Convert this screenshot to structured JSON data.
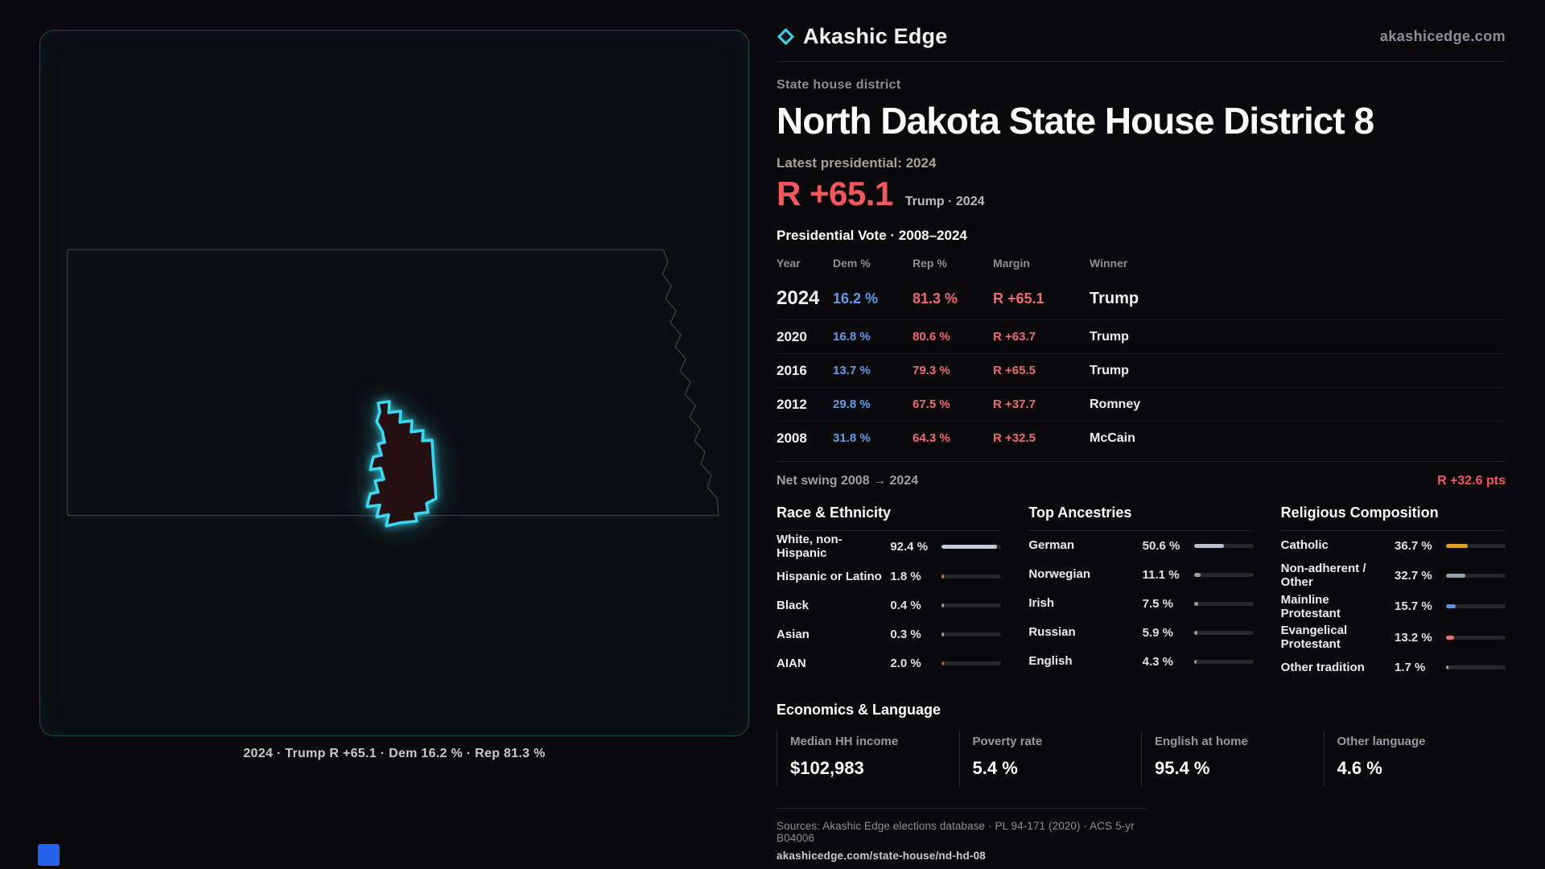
{
  "theme": {
    "accent_cyan": "#3cd9f2",
    "rep_red": "#ee6a6e",
    "dem_blue": "#5f9ee8",
    "headline_red": "#f4575c"
  },
  "brand": {
    "name": "Akashic Edge",
    "site": "akashicedge.com"
  },
  "map": {
    "caption": "2024 · Trump R +65.1 · Dem 16.2 % · Rep 81.3 %"
  },
  "district": {
    "eyebrow": "State house district",
    "title": "North Dakota State House District 8",
    "latest_label": "Latest presidential: 2024",
    "headline_margin": "R +65.1",
    "headline_sub": "Trump · 2024"
  },
  "vote_table": {
    "title": "Presidential Vote · 2008–2024",
    "columns": {
      "year": "Year",
      "dem": "Dem %",
      "rep": "Rep %",
      "margin": "Margin",
      "winner": "Winner"
    },
    "rows": [
      {
        "year": "2024",
        "dem": "16.2 %",
        "rep": "81.3 %",
        "margin": "R +65.1",
        "winner": "Trump"
      },
      {
        "year": "2020",
        "dem": "16.8 %",
        "rep": "80.6 %",
        "margin": "R +63.7",
        "winner": "Trump"
      },
      {
        "year": "2016",
        "dem": "13.7 %",
        "rep": "79.3 %",
        "margin": "R +65.5",
        "winner": "Trump"
      },
      {
        "year": "2012",
        "dem": "29.8 %",
        "rep": "67.5 %",
        "margin": "R +37.7",
        "winner": "Romney"
      },
      {
        "year": "2008",
        "dem": "31.8 %",
        "rep": "64.3 %",
        "margin": "R +32.5",
        "winner": "McCain"
      }
    ],
    "net_swing_label": "Net swing 2008 → 2024",
    "net_swing_value": "R +32.6 pts"
  },
  "demographics": {
    "race": {
      "title": "Race & Ethnicity",
      "items": [
        {
          "label": "White, non-Hispanic",
          "value": "92.4 %",
          "pct": 92.4,
          "color": "#c3cad8"
        },
        {
          "label": "Hispanic or Latino",
          "value": "1.8 %",
          "pct": 1.8,
          "color": "#c9824a"
        },
        {
          "label": "Black",
          "value": "0.4 %",
          "pct": 0.4,
          "color": "#9aa0ab"
        },
        {
          "label": "Asian",
          "value": "0.3 %",
          "pct": 0.3,
          "color": "#9aa0ab"
        },
        {
          "label": "AIAN",
          "value": "2.0 %",
          "pct": 2.0,
          "color": "#c05b33"
        }
      ]
    },
    "ancestries": {
      "title": "Top Ancestries",
      "items": [
        {
          "label": "German",
          "value": "50.6 %",
          "pct": 50.6,
          "color": "#b9c0cc"
        },
        {
          "label": "Norwegian",
          "value": "11.1 %",
          "pct": 11.1,
          "color": "#9aa0ab"
        },
        {
          "label": "Irish",
          "value": "7.5 %",
          "pct": 7.5,
          "color": "#9aa0ab"
        },
        {
          "label": "Russian",
          "value": "5.9 %",
          "pct": 5.9,
          "color": "#9aa0ab"
        },
        {
          "label": "English",
          "value": "4.3 %",
          "pct": 4.3,
          "color": "#9aa0ab"
        }
      ]
    },
    "religion": {
      "title": "Religious Composition",
      "items": [
        {
          "label": "Catholic",
          "value": "36.7 %",
          "pct": 36.7,
          "color": "#d9a427"
        },
        {
          "label": "Non-adherent / Other",
          "value": "32.7 %",
          "pct": 32.7,
          "color": "#9aa2ad"
        },
        {
          "label": "Mainline Protestant",
          "value": "15.7 %",
          "pct": 15.7,
          "color": "#5f8fe8"
        },
        {
          "label": "Evangelical Protestant",
          "value": "13.2 %",
          "pct": 13.2,
          "color": "#e8707f"
        },
        {
          "label": "Other tradition",
          "value": "1.7 %",
          "pct": 1.7,
          "color": "#9aa2ad"
        }
      ]
    }
  },
  "economics": {
    "title": "Economics & Language",
    "stats": [
      {
        "label": "Median HH income",
        "value": "$102,983"
      },
      {
        "label": "Poverty rate",
        "value": "5.4 %"
      },
      {
        "label": "English at home",
        "value": "95.4 %"
      },
      {
        "label": "Other language",
        "value": "4.6 %"
      }
    ]
  },
  "footer": {
    "sources": "Sources: Akashic Edge elections database · PL 94-171 (2020) · ACS 5-yr B04006",
    "permalink": "akashicedge.com/state-house/nd-hd-08"
  }
}
